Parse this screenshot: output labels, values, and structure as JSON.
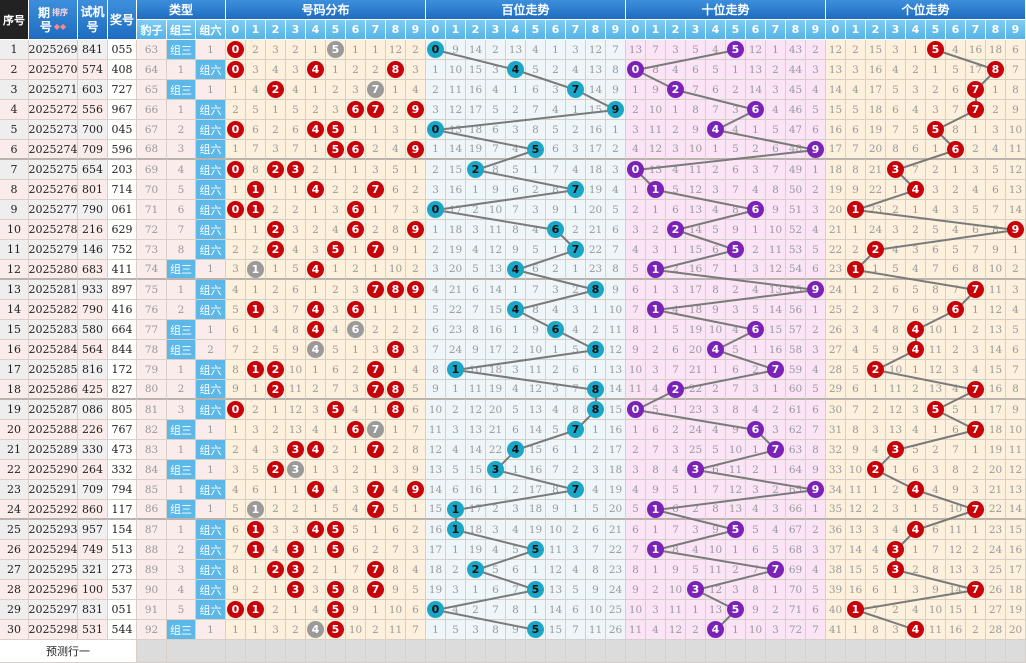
{
  "header": {
    "seq": "序号",
    "issue_top": "期",
    "issue_bottom": "号",
    "sort": "排序",
    "test_top": "试机",
    "test_bottom": "号",
    "draw": "奖号",
    "type": "类型",
    "type_cols": [
      "豹子",
      "组三",
      "组六"
    ],
    "distribution": "号码分布",
    "hundreds": "百位走势",
    "tens": "十位走势",
    "units": "个位走势",
    "digits": [
      "0",
      "1",
      "2",
      "3",
      "4",
      "5",
      "6",
      "7",
      "8",
      "9"
    ]
  },
  "labels": {
    "baozi": "豹子",
    "zusan": "组三",
    "zuliu": "组六"
  },
  "first_row_type": {
    "baozi": 63,
    "zusan": "组三",
    "zuliu": 1
  },
  "first_row_omissions": {
    "distribution": [
      0,
      2,
      3,
      2,
      1,
      0,
      1,
      1,
      12,
      2
    ],
    "hundreds": [
      0,
      9,
      14,
      2,
      13,
      4,
      1,
      3,
      12,
      7
    ],
    "tens": [
      13,
      7,
      3,
      5,
      4,
      0,
      12,
      1,
      43,
      2
    ],
    "units": [
      12,
      2,
      15,
      3,
      1,
      0,
      4,
      16,
      18,
      6
    ]
  },
  "rows": [
    {
      "seq": "1",
      "issue": "2025269",
      "test": "841",
      "draw": "055"
    },
    {
      "seq": "2",
      "issue": "2025270",
      "test": "574",
      "draw": "408"
    },
    {
      "seq": "3",
      "issue": "2025271",
      "test": "603",
      "draw": "727"
    },
    {
      "seq": "4",
      "issue": "2025272",
      "test": "556",
      "draw": "967"
    },
    {
      "seq": "5",
      "issue": "2025273",
      "test": "700",
      "draw": "045"
    },
    {
      "seq": "6",
      "issue": "2025274",
      "test": "709",
      "draw": "596"
    },
    {
      "seq": "7",
      "issue": "2025275",
      "test": "654",
      "draw": "203"
    },
    {
      "seq": "8",
      "issue": "2025276",
      "test": "801",
      "draw": "714"
    },
    {
      "seq": "9",
      "issue": "2025277",
      "test": "790",
      "draw": "061"
    },
    {
      "seq": "10",
      "issue": "2025278",
      "test": "216",
      "draw": "629"
    },
    {
      "seq": "11",
      "issue": "2025279",
      "test": "146",
      "draw": "752"
    },
    {
      "seq": "12",
      "issue": "2025280",
      "test": "683",
      "draw": "411"
    },
    {
      "seq": "13",
      "issue": "2025281",
      "test": "933",
      "draw": "897"
    },
    {
      "seq": "14",
      "issue": "2025282",
      "test": "790",
      "draw": "416"
    },
    {
      "seq": "15",
      "issue": "2025283",
      "test": "580",
      "draw": "664"
    },
    {
      "seq": "16",
      "issue": "2025284",
      "test": "564",
      "draw": "844"
    },
    {
      "seq": "17",
      "issue": "2025285",
      "test": "816",
      "draw": "172"
    },
    {
      "seq": "18",
      "issue": "2025286",
      "test": "425",
      "draw": "827"
    },
    {
      "seq": "19",
      "issue": "2025287",
      "test": "086",
      "draw": "805"
    },
    {
      "seq": "20",
      "issue": "2025288",
      "test": "226",
      "draw": "767"
    },
    {
      "seq": "21",
      "issue": "2025289",
      "test": "330",
      "draw": "473"
    },
    {
      "seq": "22",
      "issue": "2025290",
      "test": "264",
      "draw": "332"
    },
    {
      "seq": "23",
      "issue": "2025291",
      "test": "709",
      "draw": "794"
    },
    {
      "seq": "24",
      "issue": "2025292",
      "test": "860",
      "draw": "117"
    },
    {
      "seq": "25",
      "issue": "2025293",
      "test": "957",
      "draw": "154"
    },
    {
      "seq": "26",
      "issue": "2025294",
      "test": "749",
      "draw": "513"
    },
    {
      "seq": "27",
      "issue": "2025295",
      "test": "321",
      "draw": "273"
    },
    {
      "seq": "28",
      "issue": "2025296",
      "test": "100",
      "draw": "537"
    },
    {
      "seq": "29",
      "issue": "2025297",
      "test": "831",
      "draw": "051"
    },
    {
      "seq": "30",
      "issue": "2025298",
      "test": "531",
      "draw": "544"
    }
  ],
  "prediction_label": "预测行一",
  "colors": {
    "distribution_ball": "#c8000a",
    "repeat_ball": "#9a9a9a",
    "hundreds_ball": "#1aa6c6",
    "tens_ball": "#7a22b8",
    "units_ball": "#c8000a",
    "distribution_bg": "#fdf0dc",
    "hundreds_bg": "#eef6fa",
    "tens_bg": "#fae4f6",
    "units_bg": "#fdf0dc",
    "line": "#7a7a7a"
  }
}
